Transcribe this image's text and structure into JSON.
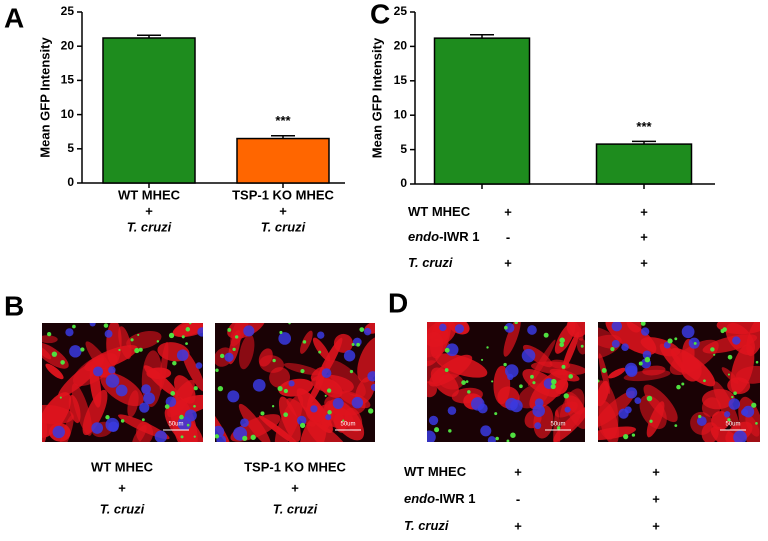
{
  "panel_labels": [
    "A",
    "B",
    "C",
    "D"
  ],
  "chart_data": [
    {
      "type": "bar",
      "y_label": "Mean GFP Intensity",
      "categories": [
        [
          "WT MHEC",
          "+",
          "T. cruzi"
        ],
        [
          "TSP-1 KO MHEC",
          "+",
          "T. cruzi"
        ]
      ],
      "values": [
        21.2,
        6.5
      ],
      "errors": [
        0.4,
        0.4
      ],
      "colors": [
        "#1e8c1e",
        "#ff6600"
      ],
      "annotation": {
        "text": "***",
        "index": 1
      },
      "ylim": [
        0,
        25
      ],
      "yticks": [
        0,
        5,
        10,
        15,
        20,
        25
      ]
    },
    {
      "type": "bar",
      "y_label": "Mean GFP Intensity",
      "values": [
        21.2,
        5.8
      ],
      "errors": [
        0.5,
        0.4
      ],
      "colors": [
        "#1e8c1e",
        "#1e8c1e"
      ],
      "annotation": {
        "text": "***",
        "index": 1
      },
      "ylim": [
        0,
        25
      ],
      "yticks": [
        0,
        5,
        10,
        15,
        20,
        25
      ],
      "conditions": [
        {
          "parts": [
            {
              "text": "WT MHEC",
              "italic": false
            }
          ],
          "marks": [
            "+",
            "+"
          ]
        },
        {
          "parts": [
            {
              "text": "endo",
              "italic": true
            },
            {
              "text": "-IWR 1",
              "italic": false
            }
          ],
          "marks": [
            "-",
            "+"
          ]
        },
        {
          "parts": [
            {
              "text": "T. cruzi",
              "italic": true
            }
          ],
          "marks": [
            "+",
            "+"
          ]
        }
      ]
    }
  ],
  "panel_b": {
    "scale_bar": "50um",
    "labels": [
      [
        "WT MHEC",
        "+",
        "T. cruzi"
      ],
      [
        "TSP-1 KO MHEC",
        "+",
        "T. cruzi"
      ]
    ]
  },
  "panel_d": {
    "scale_bar": "50um",
    "conditions": [
      {
        "parts": [
          {
            "text": "WT MHEC",
            "italic": false
          }
        ],
        "marks": [
          "+",
          "+"
        ]
      },
      {
        "parts": [
          {
            "text": "endo",
            "italic": true
          },
          {
            "text": "-IWR 1",
            "italic": false
          }
        ],
        "marks": [
          "-",
          "+"
        ]
      },
      {
        "parts": [
          {
            "text": "T. cruzi",
            "italic": true
          }
        ],
        "marks": [
          "+",
          "+"
        ]
      }
    ]
  }
}
